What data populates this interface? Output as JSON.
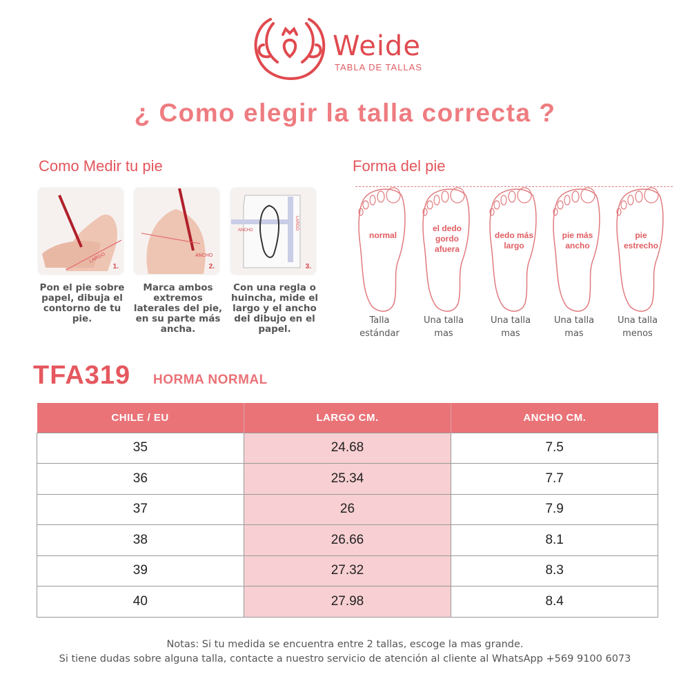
{
  "header": {
    "brand": "Weide",
    "tagline": "TABLA DE TALLAS",
    "headline": "¿ Como elegir la talla correcta ?",
    "accent_color": "#e5585f"
  },
  "measure": {
    "title": "Como Medir tu pie",
    "steps": [
      {
        "num": "1.",
        "tag": "LARGO",
        "caption": "Pon el pie sobre papel, dibuja el contorno de tu pie."
      },
      {
        "num": "2.",
        "tag": "ANCHO",
        "caption": "Marca ambos extremos laterales del pie, en su parte más ancha."
      },
      {
        "num": "3.",
        "tag": "ANCHO",
        "tag2": "LARGO",
        "caption": "Con una regla o huincha, mide el largo y el ancho del dibujo en el papel."
      }
    ]
  },
  "shapes": {
    "title": "Forma del pie",
    "items": [
      {
        "inside": [
          "normal"
        ],
        "label1": "Talla",
        "label2": "estándar"
      },
      {
        "inside": [
          "el dedo",
          "gordo",
          "afuera"
        ],
        "label1": "Una talla",
        "label2": "mas"
      },
      {
        "inside": [
          "dedo más",
          "largo"
        ],
        "label1": "Una talla",
        "label2": "mas"
      },
      {
        "inside": [
          "pie más",
          "ancho"
        ],
        "label1": "Una talla",
        "label2": "mas"
      },
      {
        "inside": [
          "pie",
          "estrecho"
        ],
        "label1": "Una talla",
        "label2": "menos"
      }
    ]
  },
  "product": {
    "model": "TFA319",
    "last": "HORMA NORMAL"
  },
  "table": {
    "headers": [
      "CHILE / EU",
      "LARGO CM.",
      "ANCHO CM."
    ],
    "rows": [
      [
        "35",
        "24.68",
        "7.5"
      ],
      [
        "36",
        "25.34",
        "7.7"
      ],
      [
        "37",
        "26",
        "7.9"
      ],
      [
        "38",
        "26.66",
        "8.1"
      ],
      [
        "39",
        "27.32",
        "8.3"
      ],
      [
        "40",
        "27.98",
        "8.4"
      ]
    ],
    "header_color": "#ea7378",
    "highlight_color": "#f8cfd2"
  },
  "notes": {
    "line1": "Notas: Si tu medida se encuentra entre 2 tallas, escoge la mas grande.",
    "line2": "Si tiene dudas sobre alguna talla, contacte a nuestro servicio de atención al cliente al WhatsApp +569 9100 6073"
  }
}
